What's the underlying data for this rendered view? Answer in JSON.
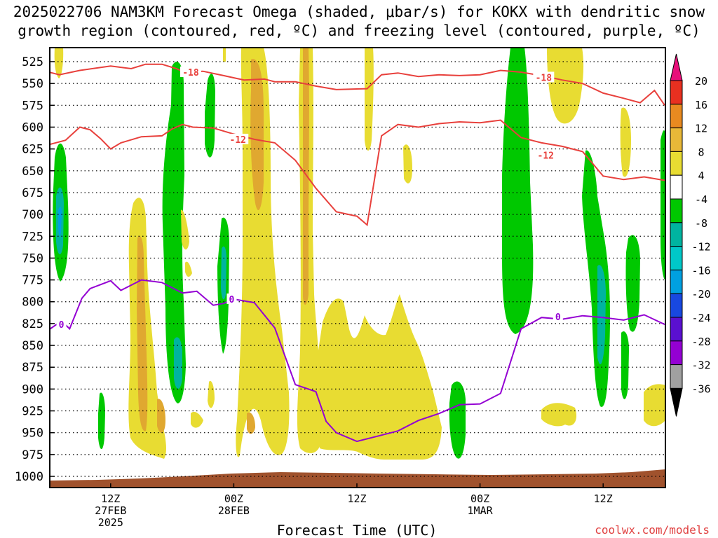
{
  "title": {
    "line1": "2025022706 NAM3KM Forecast Omega (shaded, μbar/s) for KOKX with dendritic snow",
    "line2": "growth region (contoured, red, ºC) and freezing level (contoured, purple, ºC)"
  },
  "credit": "coolwx.com/models",
  "colors": {
    "frame": "#000000",
    "ground": "#a0522d",
    "temp_contour": "#e8403c",
    "freezing_contour": "#9400d3",
    "green": "#00c800",
    "teal": "#00b4a0",
    "cyan": "#00a0e0",
    "yellow": "#e8dc32",
    "gold": "#e0a830",
    "orange": "#e08a20"
  },
  "chart_data": {
    "type": "heatmap",
    "xlabel": "Forecast Time (UTC)",
    "ylabel": "",
    "y_axis": {
      "scale": "pressure (hPa), inverted",
      "ylim": [
        1000,
        525
      ],
      "ticks": [
        "525",
        "550",
        "575",
        "600",
        "625",
        "650",
        "675",
        "700",
        "725",
        "750",
        "775",
        "800",
        "825",
        "850",
        "875",
        "900",
        "925",
        "950",
        "975",
        "1000"
      ]
    },
    "x_axis": {
      "unit": "hours from 2025-02-27 06Z",
      "xlim": [
        0,
        30
      ],
      "ticks": [
        {
          "x": 3,
          "line1": "12Z",
          "line2": "27FEB",
          "line3": "2025"
        },
        {
          "x": 9,
          "line1": "00Z",
          "line2": "28FEB",
          "line3": ""
        },
        {
          "x": 15,
          "line1": "12Z",
          "line2": "",
          "line3": ""
        },
        {
          "x": 21,
          "line1": "00Z",
          "line2": "1MAR",
          "line3": ""
        },
        {
          "x": 27,
          "line1": "12Z",
          "line2": "",
          "line3": ""
        }
      ]
    },
    "colorbar": {
      "labels": [
        "20",
        "16",
        "12",
        "8",
        "4",
        "-4",
        "-8",
        "-12",
        "-16",
        "-20",
        "-24",
        "-28",
        "-32",
        "-36"
      ],
      "bins": [
        {
          "from": 20,
          "to": 24,
          "color": "#e8107a"
        },
        {
          "from": 16,
          "to": 20,
          "color": "#e83020"
        },
        {
          "from": 12,
          "to": 16,
          "color": "#e88a20"
        },
        {
          "from": 8,
          "to": 12,
          "color": "#e8b838"
        },
        {
          "from": 4,
          "to": 8,
          "color": "#e8dc32"
        },
        {
          "from": -4,
          "to": 4,
          "color": "#ffffff"
        },
        {
          "from": -8,
          "to": -4,
          "color": "#00c800"
        },
        {
          "from": -12,
          "to": -8,
          "color": "#00b4a0"
        },
        {
          "from": -16,
          "to": -12,
          "color": "#00c8c8"
        },
        {
          "from": -20,
          "to": -16,
          "color": "#00a0e0"
        },
        {
          "from": -24,
          "to": -20,
          "color": "#1848e0"
        },
        {
          "from": -28,
          "to": -24,
          "color": "#5a10d0"
        },
        {
          "from": -32,
          "to": -28,
          "color": "#9400d3"
        },
        {
          "from": -36,
          "to": -32,
          "color": "#a0a0a0"
        },
        {
          "from": -40,
          "to": -36,
          "color": "#000000"
        }
      ]
    },
    "contours": [
      {
        "label": "-18",
        "color": "#e8403c",
        "label_at": [
          6.9,
          537
        ],
        "points": [
          [
            0,
            537
          ],
          [
            0.5,
            540
          ],
          [
            1.5,
            535
          ],
          [
            3,
            530
          ],
          [
            4,
            533
          ],
          [
            4.7,
            528
          ],
          [
            5.5,
            528
          ],
          [
            6.2,
            533
          ],
          [
            6.6,
            537
          ],
          [
            7.5,
            536
          ],
          [
            8.5,
            541
          ],
          [
            9.5,
            546
          ],
          [
            10.5,
            545
          ],
          [
            11,
            548
          ],
          [
            12,
            548
          ],
          [
            13,
            553
          ],
          [
            14,
            557
          ],
          [
            15.5,
            556
          ],
          [
            16.2,
            540
          ],
          [
            17,
            538
          ],
          [
            18,
            542
          ],
          [
            19,
            540
          ],
          [
            20,
            541
          ],
          [
            21,
            540
          ],
          [
            22,
            535
          ],
          [
            23,
            537
          ],
          [
            24,
            541
          ],
          [
            25,
            546
          ],
          [
            26,
            550
          ],
          [
            27,
            561
          ],
          [
            28,
            567
          ],
          [
            28.8,
            572
          ],
          [
            29.5,
            558
          ],
          [
            30,
            575
          ]
        ]
      },
      {
        "label": "-12",
        "color": "#e8403c",
        "label_at": [
          9.2,
          614
        ],
        "points": [
          [
            0,
            620
          ],
          [
            0.8,
            615
          ],
          [
            1.5,
            600
          ],
          [
            2,
            603
          ],
          [
            2.5,
            613
          ],
          [
            3,
            625
          ],
          [
            3.5,
            618
          ],
          [
            4.5,
            611
          ],
          [
            5.5,
            610
          ],
          [
            6,
            602
          ],
          [
            6.5,
            597
          ],
          [
            7,
            600
          ],
          [
            8,
            601
          ],
          [
            9,
            608
          ],
          [
            10,
            614
          ],
          [
            11,
            618
          ],
          [
            12,
            638
          ],
          [
            13,
            670
          ],
          [
            14,
            697
          ],
          [
            15,
            702
          ],
          [
            15.5,
            712
          ],
          [
            16.2,
            610
          ],
          [
            17,
            597
          ],
          [
            18,
            600
          ],
          [
            19,
            596
          ],
          [
            20,
            594
          ],
          [
            21,
            595
          ],
          [
            22,
            592
          ],
          [
            23,
            612
          ],
          [
            24,
            618
          ],
          [
            25,
            622
          ],
          [
            26,
            628
          ],
          [
            27,
            656
          ],
          [
            28,
            660
          ],
          [
            29,
            657
          ],
          [
            30,
            661
          ]
        ]
      },
      {
        "label": "0",
        "color": "#9400d3",
        "label_at": [
          8.9,
          797
        ],
        "points": [
          [
            0,
            832
          ],
          [
            0.6,
            822
          ],
          [
            1,
            831
          ],
          [
            1.6,
            796
          ],
          [
            2,
            785
          ],
          [
            3,
            776
          ],
          [
            3.5,
            787
          ],
          [
            4.5,
            775
          ],
          [
            5.5,
            778
          ],
          [
            6.5,
            790
          ],
          [
            7.2,
            788
          ],
          [
            8,
            804
          ],
          [
            8.5,
            802
          ],
          [
            9,
            797
          ],
          [
            10,
            801
          ],
          [
            11,
            830
          ],
          [
            12,
            895
          ],
          [
            13,
            903
          ],
          [
            13.5,
            937
          ],
          [
            14,
            950
          ],
          [
            15,
            960
          ],
          [
            16,
            954
          ],
          [
            17,
            948
          ],
          [
            18,
            936
          ],
          [
            19,
            928
          ],
          [
            20,
            918
          ],
          [
            21,
            917
          ],
          [
            22,
            905
          ],
          [
            23,
            831
          ],
          [
            24,
            818
          ],
          [
            25,
            820
          ],
          [
            26,
            816
          ],
          [
            27,
            818
          ],
          [
            28,
            821
          ],
          [
            29,
            815
          ],
          [
            30,
            826
          ]
        ]
      }
    ]
  }
}
